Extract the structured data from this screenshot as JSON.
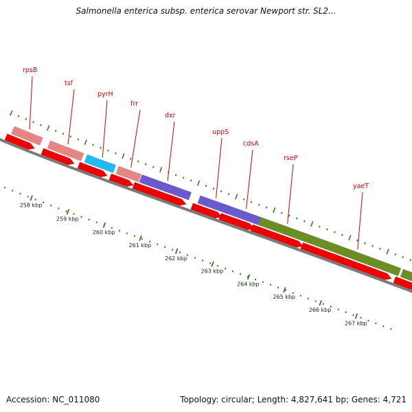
{
  "title": "Salmonella enterica subsp. enterica serovar Newport str. SL2...",
  "footer": {
    "accession_label": "Accession:",
    "accession": "NC_011080",
    "topology_label": "Topology:",
    "topology": "circular",
    "length_label": "Length:",
    "length": "4,827,641 bp",
    "genes_label": "Genes:",
    "genes": "4,721"
  },
  "colors": {
    "label_red": "#cc0000",
    "strand_red": "#ee0000",
    "backbone": "#7a7a7a",
    "tick_green": "#2e7d1e",
    "pink": "#e58585",
    "cyan": "#22bbee",
    "purple": "#6a5acd",
    "olive": "#6b8e23"
  },
  "scale_labels": [
    "258 kbp",
    "259 kbp",
    "260 kbp",
    "261 kbp",
    "262 kbp",
    "263 kbp",
    "264 kbp",
    "265 kbp",
    "266 kbp",
    "267 kbp"
  ],
  "genes": [
    {
      "name": "rpsB",
      "color": "pink"
    },
    {
      "name": "tsf",
      "color": "pink"
    },
    {
      "name": "pyrH",
      "color": "cyan"
    },
    {
      "name": "frr",
      "color": "pink"
    },
    {
      "name": "dxr",
      "color": "purple"
    },
    {
      "name": "uppS",
      "color": "purple"
    },
    {
      "name": "cdsA",
      "color": "purple"
    },
    {
      "name": "rseP",
      "color": "olive"
    },
    {
      "name": "yaeT",
      "color": "olive"
    }
  ]
}
